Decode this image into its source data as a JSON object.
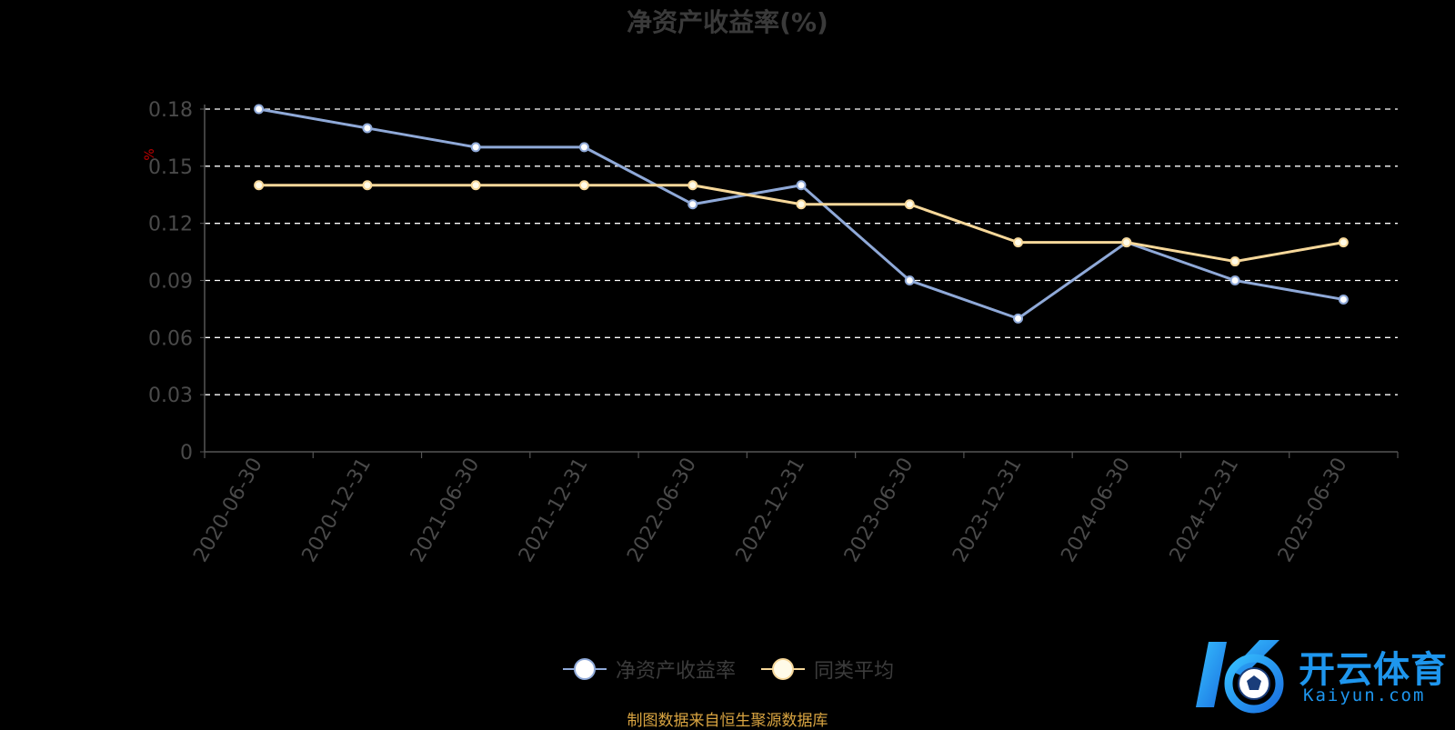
{
  "colors": {
    "background": "#000000",
    "series_roe": "#8fa9d8",
    "series_avg": "#f7d89a",
    "grid": "#ffffff",
    "axis": "#555555",
    "tick_text": "#4a4a4a",
    "unit_text": "#c00000",
    "source_text": "#d9a441",
    "logo": "#1e96ee"
  },
  "chart_data": {
    "type": "line",
    "title": "净资产收益率(%)",
    "ylabel": "%",
    "ylim": [
      0,
      0.18
    ],
    "yticks": [
      "0",
      "0.03",
      "0.06",
      "0.09",
      "0.12",
      "0.15",
      "0.18"
    ],
    "ytick_values": [
      0,
      0.03,
      0.06,
      0.09,
      0.12,
      0.15,
      0.18
    ],
    "grid": true,
    "legend_position": "bottom-center",
    "categories": [
      "2020-06-30",
      "2020-12-31",
      "2021-06-30",
      "2021-12-31",
      "2022-06-30",
      "2022-12-31",
      "2023-06-30",
      "2023-12-31",
      "2024-06-30",
      "2024-12-31",
      "2025-06-30"
    ],
    "series": [
      {
        "name": "净资产收益率",
        "color": "#8fa9d8",
        "values": [
          0.18,
          0.17,
          0.16,
          0.16,
          0.13,
          0.14,
          0.09,
          0.07,
          0.11,
          0.09,
          0.08
        ]
      },
      {
        "name": "同类平均",
        "color": "#f7d89a",
        "values": [
          0.14,
          0.14,
          0.14,
          0.14,
          0.14,
          0.13,
          0.13,
          0.11,
          0.11,
          0.1,
          0.11
        ]
      }
    ]
  },
  "legend": {
    "item_roe": "净资产收益率",
    "item_avg": "同类平均"
  },
  "source_note": "制图数据来自恒生聚源数据库",
  "logo": {
    "icon": "kaiyun-soccer-logo-icon",
    "text_cn": "开云体育",
    "text_en": "Kaiyun.com"
  }
}
